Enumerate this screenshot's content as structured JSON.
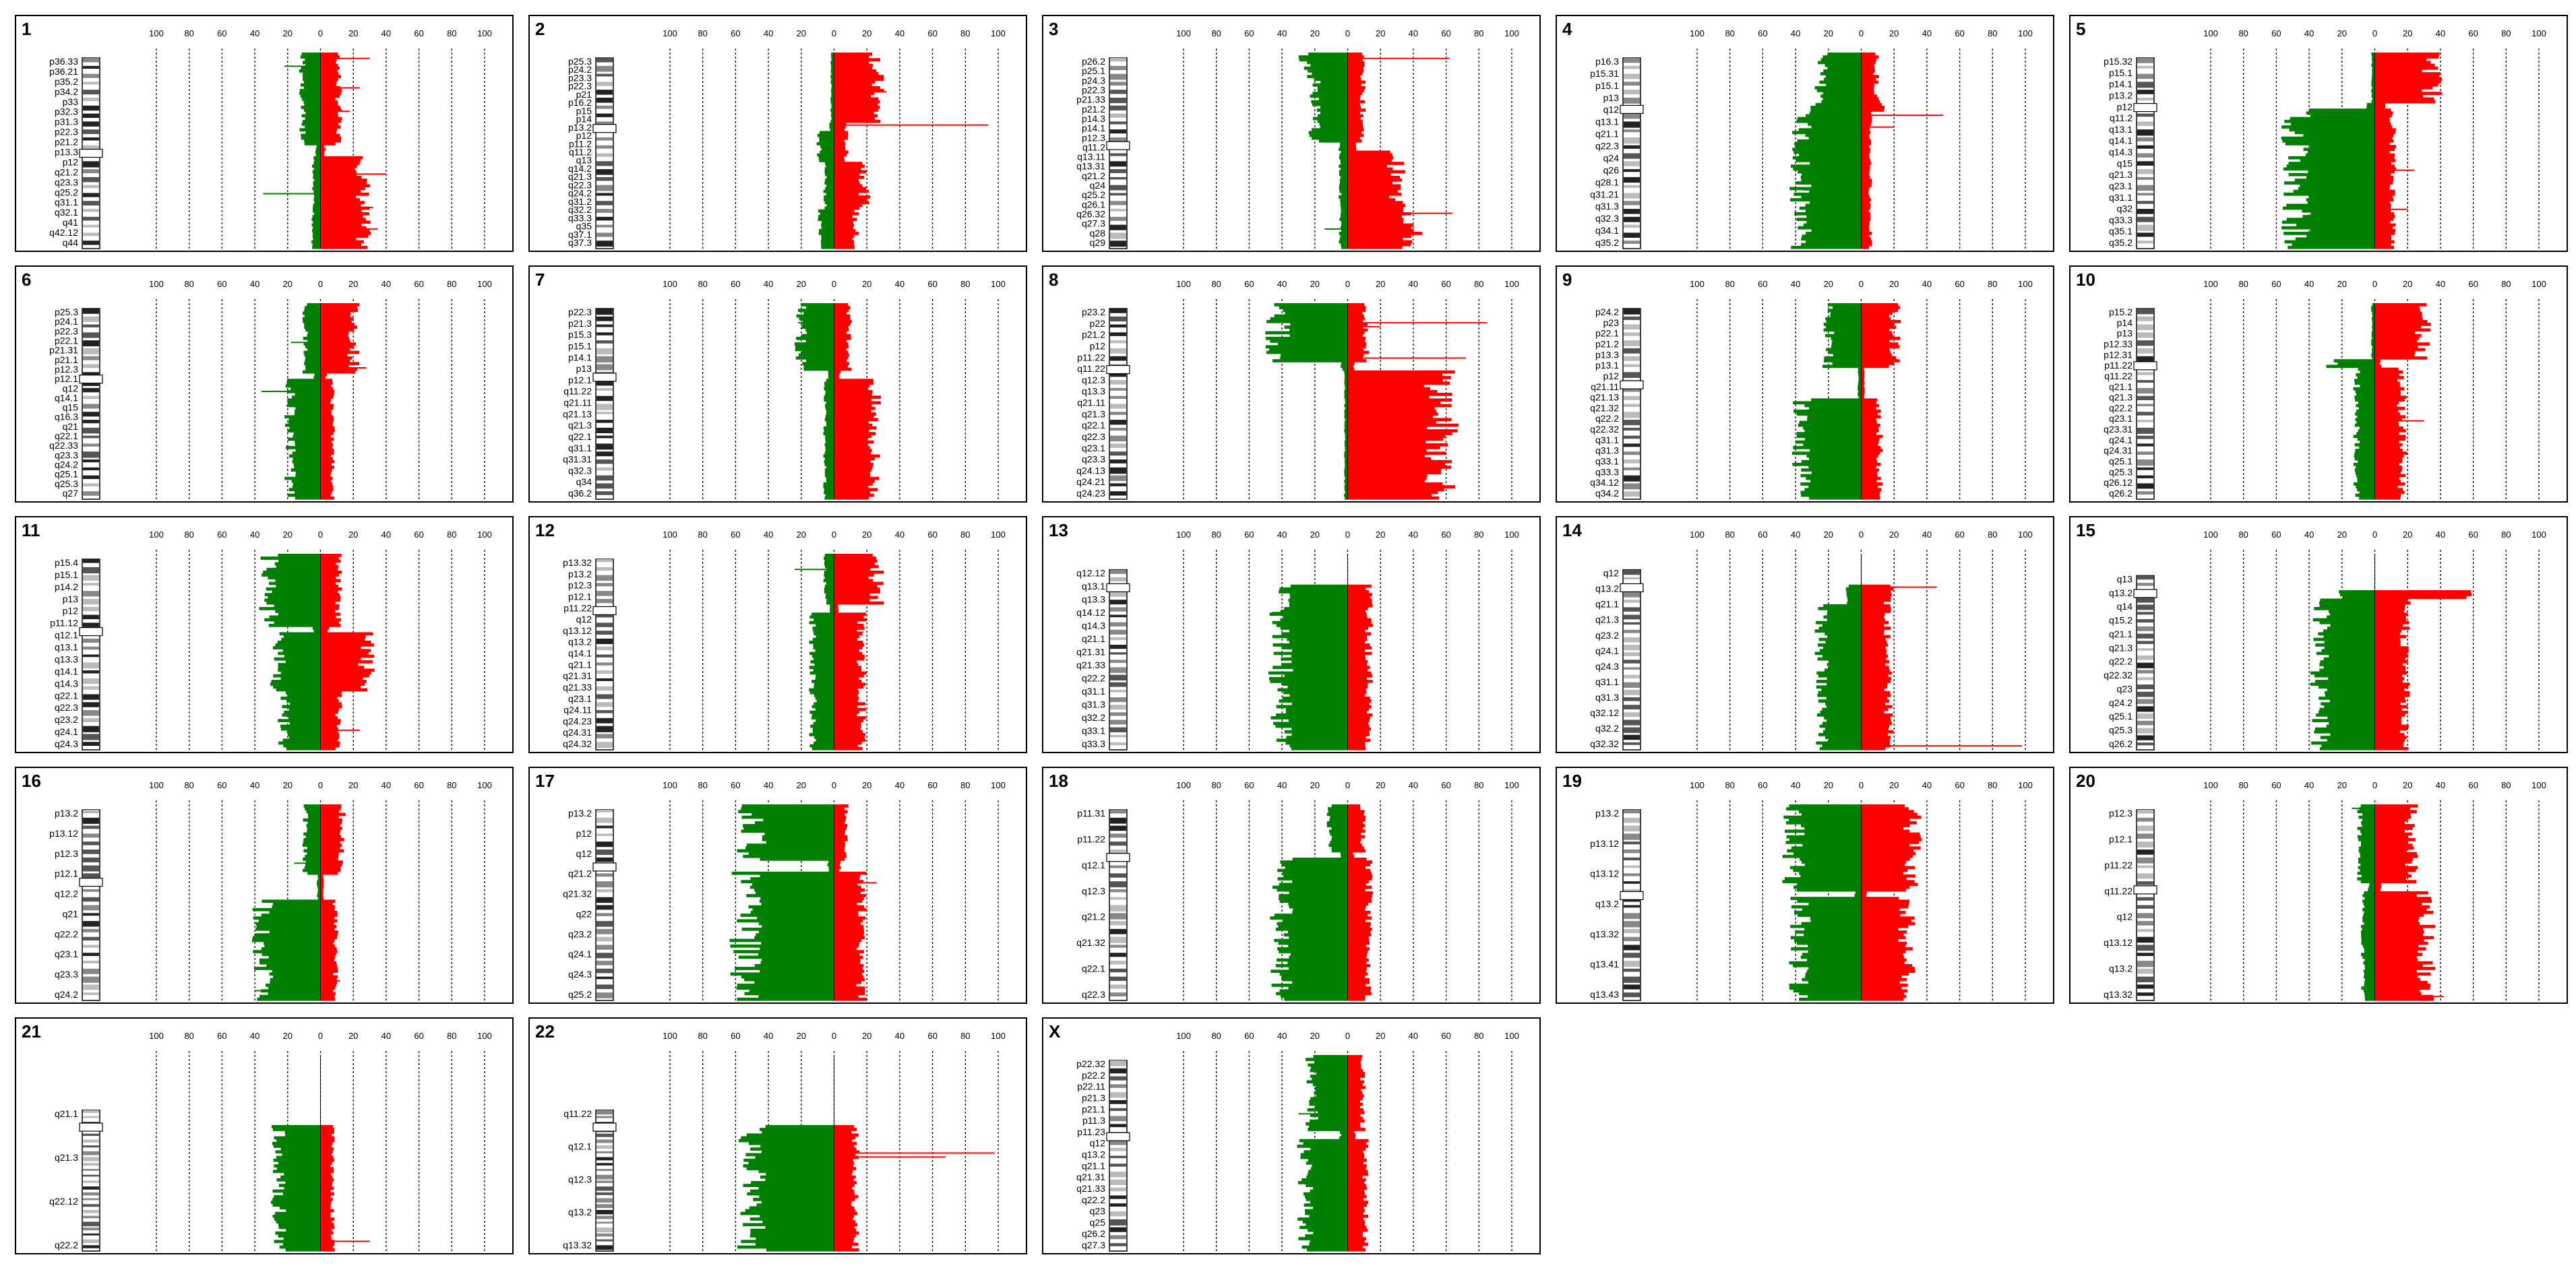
{
  "chart_data": {
    "type": "bar",
    "axis": {
      "ticks": [
        "100",
        "80",
        "60",
        "40",
        "20",
        "0",
        "20",
        "40",
        "60",
        "80",
        "100"
      ],
      "range": [
        -100,
        100
      ]
    },
    "colors": {
      "loss": "#008000",
      "gain": "#ff0000",
      "outlier": "#ff0000",
      "frame": "#000000"
    },
    "panels": [
      {
        "name": "1",
        "bands": [
          "p36.33",
          "p36.21",
          "p35.2",
          "p34.2",
          "p33",
          "p32.3",
          "p31.3",
          "p22.3",
          "p21.2",
          "p13.3",
          "p12",
          "q21.2",
          "q23.3",
          "q25.2",
          "q31.1",
          "q32.1",
          "q41",
          "q42.12",
          "q44"
        ],
        "centromere": 0.5,
        "segments": [
          [
            0.0,
            0.47,
            -12,
            12
          ],
          [
            0.47,
            0.52,
            -3,
            3
          ],
          [
            0.52,
            1.0,
            -5,
            28
          ]
        ],
        "outliers": [
          [
            0.03,
            30
          ],
          [
            0.07,
            -22
          ],
          [
            0.18,
            24
          ],
          [
            0.3,
            18
          ],
          [
            0.62,
            40
          ],
          [
            0.72,
            -35
          ],
          [
            0.79,
            32
          ],
          [
            0.9,
            35
          ]
        ]
      },
      {
        "name": "2",
        "bands": [
          "p25.3",
          "p24.2",
          "p23.3",
          "p22.3",
          "p21",
          "p16.2",
          "p15",
          "p14",
          "p13.2",
          "p12",
          "p11.2",
          "q11.2",
          "q13",
          "q14.2",
          "q21.3",
          "q22.3",
          "q24.2",
          "q31.2",
          "q32.2",
          "q33.3",
          "q35",
          "q37.1",
          "q37.3"
        ],
        "centromere": 0.37,
        "segments": [
          [
            0.0,
            0.35,
            -2,
            28
          ],
          [
            0.35,
            0.4,
            -3,
            8
          ],
          [
            0.4,
            0.55,
            -10,
            8
          ],
          [
            0.55,
            0.8,
            -6,
            20
          ],
          [
            0.8,
            1.0,
            -10,
            14
          ]
        ],
        "outliers": [
          [
            0.37,
            94
          ],
          [
            0.2,
            32
          ]
        ]
      },
      {
        "name": "3",
        "bands": [
          "p26.2",
          "p25.1",
          "p24.3",
          "p22.3",
          "p21.33",
          "p21.2",
          "p14.3",
          "p14.1",
          "p12.3",
          "q11.2",
          "q13.11",
          "q13.31",
          "q21.2",
          "q24",
          "q25.2",
          "q26.1",
          "q26.32",
          "q27.3",
          "q28",
          "q29"
        ],
        "centromere": 0.46,
        "segments": [
          [
            0.0,
            0.12,
            -28,
            10
          ],
          [
            0.12,
            0.45,
            -22,
            10
          ],
          [
            0.45,
            0.5,
            -5,
            5
          ],
          [
            0.5,
            0.75,
            -5,
            32
          ],
          [
            0.75,
            1.0,
            -5,
            42
          ]
        ],
        "outliers": [
          [
            0.03,
            62
          ],
          [
            0.82,
            64
          ],
          [
            0.9,
            -14
          ]
        ]
      },
      {
        "name": "4",
        "bands": [
          "p16.3",
          "p15.31",
          "p15.1",
          "p13",
          "q12",
          "q13.1",
          "q21.1",
          "q22.3",
          "q24",
          "q26",
          "q28.1",
          "q31.21",
          "q31.3",
          "q32.3",
          "q34.1",
          "q35.2"
        ],
        "centromere": 0.27,
        "segments": [
          [
            0.0,
            0.23,
            -26,
            10
          ],
          [
            0.23,
            0.3,
            -30,
            14
          ],
          [
            0.3,
            1.0,
            -40,
            6
          ]
        ],
        "outliers": [
          [
            0.32,
            50
          ],
          [
            0.38,
            20
          ],
          [
            0.7,
            -36
          ]
        ]
      },
      {
        "name": "5",
        "bands": [
          "p15.32",
          "p15.1",
          "p14.1",
          "p13.2",
          "p12",
          "q11.2",
          "q13.1",
          "q14.1",
          "q14.3",
          "q15",
          "q21.3",
          "q23.1",
          "q31.1",
          "q32",
          "q33.3",
          "q35.1",
          "q35.2"
        ],
        "centromere": 0.26,
        "segments": [
          [
            0.0,
            0.25,
            -2,
            38
          ],
          [
            0.25,
            0.28,
            -6,
            6
          ],
          [
            0.28,
            1.0,
            -52,
            12
          ]
        ],
        "outliers": [
          [
            0.6,
            24
          ],
          [
            0.8,
            20
          ],
          [
            0.95,
            -40
          ]
        ]
      },
      {
        "name": "6",
        "bands": [
          "p25.3",
          "p24.1",
          "p22.3",
          "p22.1",
          "p21.31",
          "p21.1",
          "p12.3",
          "p12.1",
          "q12",
          "q14.1",
          "q15",
          "q16.3",
          "q21",
          "q22.1",
          "q22.33",
          "q23.3",
          "q24.2",
          "q25.1",
          "q25.3",
          "q27"
        ],
        "centromere": 0.37,
        "segments": [
          [
            0.0,
            0.35,
            -10,
            22
          ],
          [
            0.35,
            0.38,
            -4,
            4
          ],
          [
            0.38,
            1.0,
            -20,
            8
          ]
        ],
        "outliers": [
          [
            0.33,
            28
          ],
          [
            0.45,
            -36
          ],
          [
            0.2,
            -18
          ]
        ]
      },
      {
        "name": "7",
        "bands": [
          "p22.3",
          "p21.3",
          "p15.3",
          "p15.1",
          "p14.1",
          "p13",
          "p12.1",
          "q11.22",
          "q21.11",
          "q21.13",
          "q21.3",
          "q22.1",
          "q31.1",
          "q31.31",
          "q32.3",
          "q34",
          "q36.2"
        ],
        "centromere": 0.36,
        "segments": [
          [
            0.0,
            0.34,
            -22,
            10
          ],
          [
            0.34,
            0.38,
            -4,
            4
          ],
          [
            0.38,
            1.0,
            -6,
            26
          ]
        ],
        "outliers": [
          [
            0.1,
            -22
          ],
          [
            0.25,
            -18
          ]
        ]
      },
      {
        "name": "8",
        "bands": [
          "p23.2",
          "p22",
          "p21.2",
          "p12",
          "p11.22",
          "q11.22",
          "q12.3",
          "q13.3",
          "q21.11",
          "q21.3",
          "q22.1",
          "q22.3",
          "q23.1",
          "q23.3",
          "q24.13",
          "q24.21",
          "q24.23"
        ],
        "centromere": 0.32,
        "segments": [
          [
            0.0,
            0.3,
            -46,
            12
          ],
          [
            0.3,
            0.34,
            -4,
            4
          ],
          [
            0.34,
            1.0,
            -2,
            62
          ]
        ],
        "outliers": [
          [
            0.1,
            85
          ],
          [
            0.28,
            72
          ],
          [
            0.12,
            20
          ]
        ]
      },
      {
        "name": "9",
        "bands": [
          "p24.2",
          "p23",
          "p22.1",
          "p21.2",
          "p13.3",
          "p13.1",
          "p12",
          "q21.11",
          "q21.13",
          "q21.32",
          "q22.2",
          "q22.32",
          "q31.1",
          "q31.3",
          "q33.1",
          "q33.3",
          "q34.12",
          "q34.2"
        ],
        "centromere": 0.4,
        "segments": [
          [
            0.0,
            0.32,
            -22,
            22
          ],
          [
            0.32,
            0.48,
            -2,
            2
          ],
          [
            0.48,
            1.0,
            -40,
            12
          ]
        ],
        "outliers": [
          [
            0.2,
            -12
          ]
        ]
      },
      {
        "name": "10",
        "bands": [
          "p15.2",
          "p14",
          "p13",
          "p12.33",
          "p12.31",
          "p11.22",
          "q11.22",
          "q21.1",
          "q21.3",
          "q22.2",
          "q23.1",
          "q23.31",
          "q24.1",
          "q24.31",
          "q25.1",
          "q25.3",
          "q26.12",
          "q26.2"
        ],
        "centromere": 0.3,
        "segments": [
          [
            0.0,
            0.28,
            -2,
            32
          ],
          [
            0.28,
            0.32,
            -28,
            4
          ],
          [
            0.32,
            1.0,
            -12,
            18
          ]
        ],
        "outliers": [
          [
            0.3,
            -24
          ],
          [
            0.6,
            30
          ]
        ]
      },
      {
        "name": "11",
        "bands": [
          "p15.4",
          "p15.1",
          "p14.2",
          "p13",
          "p12",
          "p11.12",
          "q12.1",
          "q13.1",
          "q13.3",
          "q14.1",
          "q14.3",
          "q22.1",
          "q22.3",
          "q23.2",
          "q24.1",
          "q24.3"
        ],
        "centromere": 0.38,
        "segments": [
          [
            0.0,
            0.36,
            -34,
            12
          ],
          [
            0.36,
            0.4,
            -5,
            5
          ],
          [
            0.4,
            0.7,
            -28,
            30
          ],
          [
            0.7,
            1.0,
            -24,
            12
          ]
        ],
        "outliers": [
          [
            0.6,
            -20
          ],
          [
            0.9,
            24
          ]
        ]
      },
      {
        "name": "12",
        "bands": [
          "p13.32",
          "p13.2",
          "p12.3",
          "p12.1",
          "p11.22",
          "q12",
          "q13.12",
          "q13.2",
          "q14.1",
          "q21.1",
          "q21.31",
          "q21.33",
          "q23.1",
          "q24.11",
          "q24.23",
          "q24.31",
          "q24.32"
        ],
        "centromere": 0.27,
        "segments": [
          [
            0.0,
            0.25,
            -6,
            28
          ],
          [
            0.25,
            0.3,
            -3,
            3
          ],
          [
            0.3,
            1.0,
            -14,
            18
          ]
        ],
        "outliers": [
          [
            0.08,
            -24
          ],
          [
            0.4,
            18
          ]
        ]
      },
      {
        "name": "13",
        "bands": [
          "q12.12",
          "q13.1",
          "q13.3",
          "q14.12",
          "q14.3",
          "q21.1",
          "q21.31",
          "q21.33",
          "q22.2",
          "q31.1",
          "q31.3",
          "q32.2",
          "q33.1",
          "q33.3"
        ],
        "centromere": 0.15,
        "segments": [
          [
            0.15,
            1.0,
            -44,
            14
          ]
        ],
        "outliers": [
          [
            0.3,
            -46
          ]
        ]
      },
      {
        "name": "14",
        "bands": [
          "q12",
          "q13.2",
          "q21.1",
          "q21.3",
          "q23.2",
          "q24.1",
          "q24.3",
          "q31.1",
          "q31.3",
          "q32.12",
          "q32.2",
          "q32.32"
        ],
        "centromere": 0.15,
        "segments": [
          [
            0.15,
            0.25,
            -10,
            18
          ],
          [
            0.25,
            1.0,
            -26,
            18
          ]
        ],
        "outliers": [
          [
            0.17,
            46
          ],
          [
            0.98,
            98
          ]
        ]
      },
      {
        "name": "15",
        "bands": [
          "q13",
          "q13.2",
          "q14",
          "q15.2",
          "q21.1",
          "q21.3",
          "q22.2",
          "q22.32",
          "q23",
          "q24.2",
          "q25.1",
          "q25.3",
          "q26.2"
        ],
        "centromere": 0.18,
        "segments": [
          [
            0.18,
            0.22,
            -20,
            54
          ],
          [
            0.22,
            1.0,
            -36,
            20
          ]
        ],
        "outliers": [
          [
            0.19,
            52
          ]
        ]
      },
      {
        "name": "16",
        "bands": [
          "p13.2",
          "p13.12",
          "p12.3",
          "p12.1",
          "q12.2",
          "q21",
          "q22.2",
          "q23.1",
          "q23.3",
          "q24.2"
        ],
        "centromere": 0.38,
        "segments": [
          [
            0.0,
            0.35,
            -10,
            14
          ],
          [
            0.35,
            0.48,
            -2,
            2
          ],
          [
            0.48,
            1.0,
            -38,
            10
          ]
        ],
        "outliers": [
          [
            0.3,
            -16
          ],
          [
            0.95,
            -40
          ],
          [
            0.9,
            12
          ]
        ]
      },
      {
        "name": "17",
        "bands": [
          "p13.2",
          "p12",
          "q12",
          "q21.2",
          "q21.32",
          "q22",
          "q23.2",
          "q24.1",
          "q24.3",
          "q25.2"
        ],
        "centromere": 0.3,
        "segments": [
          [
            0.0,
            0.28,
            -54,
            8
          ],
          [
            0.28,
            0.33,
            -4,
            4
          ],
          [
            0.33,
            1.0,
            -58,
            18
          ]
        ],
        "outliers": [
          [
            0.4,
            26
          ]
        ]
      },
      {
        "name": "18",
        "bands": [
          "p11.31",
          "p11.22",
          "q12.1",
          "q12.3",
          "q21.2",
          "q21.32",
          "q22.1",
          "q22.3"
        ],
        "centromere": 0.25,
        "segments": [
          [
            0.0,
            0.23,
            -12,
            10
          ],
          [
            0.23,
            0.27,
            -4,
            4
          ],
          [
            0.27,
            1.0,
            -44,
            14
          ]
        ],
        "outliers": [
          [
            0.5,
            -8
          ]
        ]
      },
      {
        "name": "19",
        "bands": [
          "p13.2",
          "p13.12",
          "q13.12",
          "q13.2",
          "q13.32",
          "q13.41",
          "q13.43"
        ],
        "centromere": 0.45,
        "segments": [
          [
            0.0,
            0.43,
            -44,
            34
          ],
          [
            0.43,
            0.47,
            -4,
            4
          ],
          [
            0.47,
            1.0,
            -40,
            30
          ]
        ],
        "outliers": [
          [
            0.95,
            16
          ]
        ]
      },
      {
        "name": "20",
        "bands": [
          "p12.3",
          "p12.1",
          "p11.22",
          "q11.22",
          "q12",
          "q13.12",
          "q13.2",
          "q13.32"
        ],
        "centromere": 0.42,
        "segments": [
          [
            0.0,
            0.4,
            -10,
            24
          ],
          [
            0.4,
            0.44,
            -4,
            4
          ],
          [
            0.44,
            1.0,
            -8,
            34
          ]
        ],
        "outliers": [
          [
            0.02,
            -14
          ],
          [
            0.98,
            42
          ]
        ]
      },
      {
        "name": "21",
        "bands": [
          "q21.1",
          "q21.3",
          "q22.12",
          "q22.2"
        ],
        "centromere": 0.35,
        "segments": [
          [
            0.35,
            1.0,
            -28,
            8
          ]
        ],
        "outliers": [
          [
            0.38,
            -26
          ],
          [
            0.95,
            30
          ]
        ]
      },
      {
        "name": "22",
        "bands": [
          "q11.22",
          "q12.1",
          "q12.3",
          "q13.2",
          "q13.32"
        ],
        "centromere": 0.35,
        "segments": [
          [
            0.35,
            1.0,
            -54,
            14
          ]
        ],
        "outliers": [
          [
            0.5,
            98
          ],
          [
            0.52,
            68
          ]
        ]
      },
      {
        "name": "X",
        "bands": [
          "p22.32",
          "p22.2",
          "p22.11",
          "p21.3",
          "p21.1",
          "p11.3",
          "p11.23",
          "q12",
          "q13.2",
          "q21.1",
          "q21.31",
          "q21.33",
          "q22.2",
          "q23",
          "q25",
          "q26.2",
          "q27.3"
        ],
        "centromere": 0.4,
        "segments": [
          [
            0.0,
            0.38,
            -24,
            10
          ],
          [
            0.38,
            0.42,
            -5,
            5
          ],
          [
            0.42,
            1.0,
            -28,
            12
          ]
        ],
        "outliers": [
          [
            0.3,
            -30
          ]
        ]
      }
    ]
  }
}
